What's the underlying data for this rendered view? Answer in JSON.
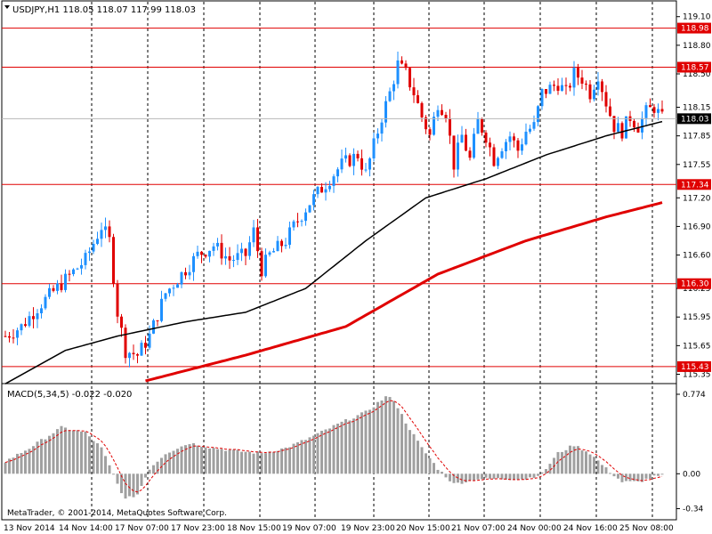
{
  "header": {
    "symbol_line": "USDJPY,H1  118.05 118.07 117.99 118.03",
    "triangle_icon": "dropdown-triangle-icon"
  },
  "macd_header": "MACD(5,34,5) -0.022 -0.020",
  "copyright": "MetaTrader, © 2001-2014, MetaQuotes Software Corp.",
  "colors": {
    "background": "#ffffff",
    "bull_candle": "#1e90ff",
    "bear_candle": "#e00000",
    "ma_fast": "#000000",
    "ma_slow": "#e00000",
    "level_line": "#e00000",
    "level_tag_bg": "#e00000",
    "current_tag_bg": "#000000",
    "histogram": "#a0a0a0",
    "signal": "#e00000",
    "grid_vertical": "#000000"
  },
  "chart_data": {
    "type": "candlestick",
    "symbol": "USDJPY",
    "timeframe": "H1",
    "ohlc_current": {
      "open": 118.05,
      "high": 118.07,
      "low": 117.99,
      "close": 118.03
    },
    "price_axis_ticks": [
      "119.10",
      "118.80",
      "118.50",
      "118.15",
      "117.85",
      "117.55",
      "117.20",
      "116.90",
      "116.60",
      "116.25",
      "115.95",
      "115.65",
      "115.35"
    ],
    "price_axis_range": [
      115.28,
      119.2
    ],
    "time_axis_labels": [
      "13 Nov 2014",
      "14 Nov 14:00",
      "17 Nov 07:00",
      "17 Nov 23:00",
      "18 Nov 15:00",
      "19 Nov 07:00",
      "19 Nov 23:00",
      "20 Nov 15:00",
      "21 Nov 07:00",
      "24 Nov 00:00",
      "24 Nov 16:00",
      "25 Nov 08:00"
    ],
    "horizontal_levels": [
      {
        "price": 118.98,
        "label": "118.98"
      },
      {
        "price": 118.57,
        "label": "118.57"
      },
      {
        "price": 117.34,
        "label": "117.34"
      },
      {
        "price": 116.3,
        "label": "116.30"
      },
      {
        "price": 115.43,
        "label": "115.43"
      }
    ],
    "current_price": {
      "price": 118.03,
      "label": "118.03"
    },
    "closes_anchor": [
      [
        0,
        115.75
      ],
      [
        4,
        115.85
      ],
      [
        8,
        116.05
      ],
      [
        14,
        116.3
      ],
      [
        20,
        116.55
      ],
      [
        24,
        116.9
      ],
      [
        26,
        116.75
      ],
      [
        28,
        116.0
      ],
      [
        30,
        115.6
      ],
      [
        33,
        115.55
      ],
      [
        36,
        115.75
      ],
      [
        40,
        116.2
      ],
      [
        44,
        116.4
      ],
      [
        48,
        116.6
      ],
      [
        52,
        116.7
      ],
      [
        56,
        116.55
      ],
      [
        60,
        116.6
      ],
      [
        62,
        116.85
      ],
      [
        64,
        116.45
      ],
      [
        66,
        116.6
      ],
      [
        70,
        116.75
      ],
      [
        72,
        116.9
      ],
      [
        76,
        117.15
      ],
      [
        80,
        117.35
      ],
      [
        84,
        117.55
      ],
      [
        88,
        117.65
      ],
      [
        90,
        117.45
      ],
      [
        92,
        117.75
      ],
      [
        94,
        118.05
      ],
      [
        96,
        118.3
      ],
      [
        98,
        118.6
      ],
      [
        100,
        118.5
      ],
      [
        102,
        118.3
      ],
      [
        104,
        118.05
      ],
      [
        106,
        117.85
      ],
      [
        108,
        118.2
      ],
      [
        110,
        118.1
      ],
      [
        112,
        117.55
      ],
      [
        114,
        117.85
      ],
      [
        116,
        117.6
      ],
      [
        118,
        118.0
      ],
      [
        120,
        117.85
      ],
      [
        122,
        117.6
      ],
      [
        124,
        117.75
      ],
      [
        126,
        117.85
      ],
      [
        128,
        117.7
      ],
      [
        130,
        117.9
      ],
      [
        132,
        117.95
      ],
      [
        134,
        118.3
      ],
      [
        136,
        118.35
      ],
      [
        138,
        118.4
      ],
      [
        140,
        118.3
      ],
      [
        142,
        118.5
      ],
      [
        144,
        118.45
      ],
      [
        146,
        118.3
      ],
      [
        148,
        118.5
      ],
      [
        150,
        118.2
      ],
      [
        152,
        117.95
      ],
      [
        154,
        117.9
      ],
      [
        156,
        118.05
      ],
      [
        158,
        117.95
      ],
      [
        160,
        118.1
      ],
      [
        162,
        118.15
      ],
      [
        164,
        118.03
      ]
    ],
    "ma_fast_anchor": [
      [
        0,
        115.25
      ],
      [
        15,
        115.6
      ],
      [
        28,
        115.75
      ],
      [
        45,
        115.9
      ],
      [
        60,
        116.0
      ],
      [
        75,
        116.25
      ],
      [
        90,
        116.75
      ],
      [
        105,
        117.2
      ],
      [
        120,
        117.4
      ],
      [
        135,
        117.65
      ],
      [
        150,
        117.85
      ],
      [
        164,
        118.0
      ]
    ],
    "ma_slow_anchor": [
      [
        35,
        115.28
      ],
      [
        60,
        115.55
      ],
      [
        85,
        115.85
      ],
      [
        108,
        116.4
      ],
      [
        130,
        116.75
      ],
      [
        150,
        117.0
      ],
      [
        164,
        117.15
      ]
    ],
    "macd": {
      "axis_ticks": [
        "0.774",
        "0.00",
        "-0.34"
      ],
      "axis_range": [
        -0.37,
        0.8
      ],
      "histogram_anchor": [
        [
          0,
          0.12
        ],
        [
          6,
          0.25
        ],
        [
          14,
          0.45
        ],
        [
          20,
          0.4
        ],
        [
          24,
          0.25
        ],
        [
          28,
          -0.1
        ],
        [
          30,
          -0.25
        ],
        [
          33,
          -0.2
        ],
        [
          36,
          0.05
        ],
        [
          40,
          0.2
        ],
        [
          46,
          0.3
        ],
        [
          52,
          0.25
        ],
        [
          58,
          0.22
        ],
        [
          64,
          0.2
        ],
        [
          70,
          0.25
        ],
        [
          76,
          0.35
        ],
        [
          84,
          0.5
        ],
        [
          90,
          0.6
        ],
        [
          95,
          0.75
        ],
        [
          97,
          0.72
        ],
        [
          100,
          0.5
        ],
        [
          104,
          0.25
        ],
        [
          108,
          0.05
        ],
        [
          112,
          -0.1
        ],
        [
          118,
          -0.05
        ],
        [
          124,
          -0.05
        ],
        [
          130,
          -0.05
        ],
        [
          134,
          0.0
        ],
        [
          138,
          0.2
        ],
        [
          142,
          0.28
        ],
        [
          146,
          0.2
        ],
        [
          150,
          0.05
        ],
        [
          154,
          -0.08
        ],
        [
          158,
          -0.08
        ],
        [
          162,
          -0.03
        ],
        [
          164,
          -0.02
        ]
      ],
      "signal_current": -0.02,
      "macd_current": -0.022
    }
  }
}
